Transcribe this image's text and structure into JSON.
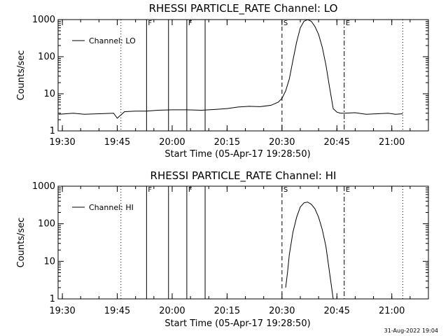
{
  "footer": {
    "timestamp": "31-Aug-2022 19:04"
  },
  "chart_data": [
    {
      "type": "line",
      "title": "RHESSI  PARTICLE_RATE  Channel: LO",
      "xlabel": "Start Time (05-Apr-17 19:28:50)",
      "ylabel": "Counts/sec",
      "yscale": "log",
      "ylim": [
        1,
        1000
      ],
      "yticks": [
        "1",
        "10",
        "100",
        "1000"
      ],
      "xlim": [
        "19:28:50",
        "21:10:00"
      ],
      "xticks": [
        "19:30",
        "19:45",
        "20:00",
        "20:15",
        "20:30",
        "20:45",
        "21:00"
      ],
      "legend": {
        "position": "top-left",
        "label": "Channel: LO"
      },
      "event_markers": [
        {
          "label": "F",
          "time": "19:53",
          "style": "solid"
        },
        {
          "label": "",
          "time": "19:59",
          "style": "solid"
        },
        {
          "label": "F",
          "time": "20:04",
          "style": "solid"
        },
        {
          "label": "",
          "time": "20:09",
          "style": "solid"
        },
        {
          "label": "S",
          "time": "20:30",
          "style": "dashed"
        },
        {
          "label": "E",
          "time": "20:47",
          "style": "dashdot"
        }
      ],
      "night_markers": [
        "19:28:50",
        "19:46",
        "21:03"
      ],
      "series": [
        {
          "name": "Channel: LO",
          "x": [
            "19:29",
            "19:33",
            "19:36",
            "19:40",
            "19:44",
            "19:45",
            "19:47",
            "19:50",
            "19:53",
            "19:56",
            "20:00",
            "20:04",
            "20:08",
            "20:12",
            "20:15",
            "20:18",
            "20:21",
            "20:24",
            "20:27",
            "20:29",
            "20:30",
            "20:31",
            "20:32",
            "20:33",
            "20:34",
            "20:35",
            "20:36",
            "20:37",
            "20:38",
            "20:39",
            "20:40",
            "20:41",
            "20:42",
            "20:43",
            "20:44",
            "20:45",
            "20:46",
            "20:47",
            "20:50",
            "20:53",
            "20:56",
            "20:59",
            "21:01",
            "21:03"
          ],
          "values": [
            2.8,
            3.0,
            2.8,
            2.9,
            3.0,
            2.2,
            3.3,
            3.4,
            3.4,
            3.6,
            3.7,
            3.7,
            3.6,
            3.8,
            4.0,
            4.4,
            4.6,
            4.5,
            4.9,
            6.0,
            7.5,
            12,
            25,
            80,
            250,
            600,
            900,
            1000,
            900,
            650,
            400,
            180,
            60,
            15,
            4.0,
            3.2,
            3.0,
            3.0,
            3.1,
            2.8,
            2.9,
            3.0,
            2.8,
            2.9
          ]
        }
      ]
    },
    {
      "type": "line",
      "title": "RHESSI  PARTICLE_RATE  Channel: HI",
      "xlabel": "Start Time (05-Apr-17 19:28:50)",
      "ylabel": "Counts/sec",
      "yscale": "log",
      "ylim": [
        1,
        1000
      ],
      "yticks": [
        "1",
        "10",
        "100",
        "1000"
      ],
      "xlim": [
        "19:28:50",
        "21:10:00"
      ],
      "xticks": [
        "19:30",
        "19:45",
        "20:00",
        "20:15",
        "20:30",
        "20:45",
        "21:00"
      ],
      "legend": {
        "position": "top-left",
        "label": "Channel: HI"
      },
      "event_markers": [
        {
          "label": "F",
          "time": "19:53",
          "style": "solid"
        },
        {
          "label": "",
          "time": "19:59",
          "style": "solid"
        },
        {
          "label": "F",
          "time": "20:04",
          "style": "solid"
        },
        {
          "label": "",
          "time": "20:09",
          "style": "solid"
        },
        {
          "label": "S",
          "time": "20:30",
          "style": "dashed"
        },
        {
          "label": "E",
          "time": "20:47",
          "style": "dashdot"
        }
      ],
      "night_markers": [
        "19:28:50",
        "19:46",
        "21:03"
      ],
      "series": [
        {
          "name": "Channel: HI",
          "x": [
            "20:31",
            "20:31:30",
            "20:32",
            "20:33",
            "20:34",
            "20:35",
            "20:36",
            "20:37",
            "20:38",
            "20:39",
            "20:40",
            "20:41",
            "20:42",
            "20:43",
            "20:44"
          ],
          "values": [
            2.0,
            5.0,
            15,
            60,
            150,
            280,
            360,
            380,
            330,
            250,
            150,
            70,
            25,
            5.0,
            1.0
          ]
        }
      ]
    }
  ]
}
